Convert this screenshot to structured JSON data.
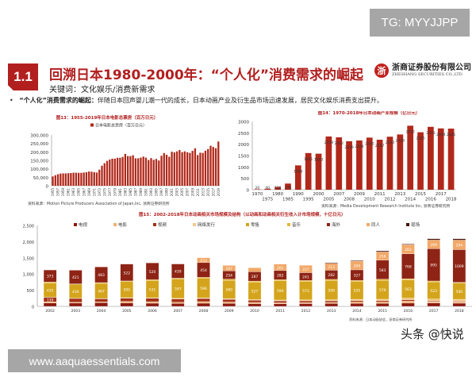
{
  "watermarks": {
    "top_right": "TG: MYYJJPP",
    "bottom_left": "www.aaquaessentials.com",
    "platform": "头条 @快说"
  },
  "header": {
    "section_number": "1.1",
    "title": "回溯日本1980-2000年：“个人化”消费需求的崛起",
    "keywords": "关键词：文化娱乐/消费新需求",
    "logo_cn": "浙商证券股份有限公司",
    "logo_en": "ZHESHANG SECURITIES CO.,LTD"
  },
  "bullet": {
    "lead": "“个人化”消费需求的崛起：",
    "text": "伴随日本回声婴儿潮一代的成长，日本动画产业及衍生品市场迅速发展，居民文化娱乐消费支出提升。"
  },
  "colors": {
    "brand": "#b21f1f",
    "bar": "#b0281a"
  },
  "chart_data": [
    {
      "type": "bar",
      "title": "图13：1955-2019年日本电影总票房（百万日元）",
      "legend": [
        "日本电影总票房（百万日元）"
      ],
      "legend_position": "top",
      "source": "资料来源：Motion Picture Producers Association of Japan,Inc, 浙商证券研究所",
      "ylim": [
        0,
        300000
      ],
      "yticks": [
        "0",
        "50,000",
        "100,000",
        "150,000",
        "200,000",
        "250,000",
        "300,000"
      ],
      "x": [
        1955,
        1956,
        1957,
        1958,
        1959,
        1960,
        1961,
        1962,
        1963,
        1964,
        1965,
        1966,
        1967,
        1968,
        1969,
        1970,
        1971,
        1972,
        1973,
        1974,
        1975,
        1976,
        1977,
        1978,
        1979,
        1980,
        1981,
        1982,
        1983,
        1984,
        1985,
        1986,
        1987,
        1988,
        1989,
        1990,
        1991,
        1992,
        1993,
        1994,
        1995,
        1996,
        1997,
        1998,
        1999,
        2000,
        2001,
        2002,
        2003,
        2004,
        2005,
        2006,
        2007,
        2008,
        2009,
        2010,
        2011,
        2012,
        2013,
        2014,
        2015,
        2016,
        2017,
        2018,
        2019
      ],
      "values": [
        55000,
        62000,
        68000,
        72000,
        73000,
        73000,
        74000,
        75000,
        77000,
        77000,
        76000,
        76000,
        78000,
        80000,
        84000,
        83000,
        80000,
        78000,
        95000,
        118000,
        133000,
        147000,
        155000,
        160000,
        160000,
        165000,
        165000,
        170000,
        188000,
        175000,
        175000,
        180000,
        162000,
        162000,
        166000,
        172000,
        166000,
        152000,
        163000,
        153000,
        158000,
        149000,
        177000,
        193000,
        183000,
        171000,
        201000,
        197000,
        203000,
        211000,
        198000,
        203000,
        198000,
        194000,
        206000,
        221000,
        181000,
        195000,
        194000,
        207000,
        217000,
        236000,
        229000,
        222000,
        261000
      ]
    },
    {
      "type": "bar",
      "title": "图14：1970-2018年日本动画产业规模（亿日元）",
      "source": "资料来源：Media Development Research Institute Inc, 浙商证券研究所",
      "ylim": [
        0,
        3000
      ],
      "yticks": [
        "0",
        "500",
        "1000",
        "1500",
        "2000",
        "2500",
        "3000"
      ],
      "categories": [
        "1970",
        "1975",
        "1980",
        "1985",
        "1990",
        "1995",
        "2000",
        "2005",
        "2007",
        "2008",
        "2009",
        "2010",
        "2011",
        "2012",
        "2013",
        "2014",
        "2015",
        "2016",
        "2017",
        "2018"
      ],
      "values": [
        20,
        40,
        120,
        270,
        1069,
        1611,
        1583,
        2339,
        2302,
        2129,
        2164,
        2290,
        2197,
        2330,
        2428,
        2812,
        2525,
        2763,
        2694,
        2685
      ]
    },
    {
      "type": "bar",
      "stacked": true,
      "title": "图15：2002-2018年日本动画相关市场规模及结构（以动画和动画相关衍生收入计市场规模，十亿日元）",
      "source": "资料来源：日本动画协会，浙商证券研究所",
      "ylim": [
        0,
        2500
      ],
      "yticks": [
        "0",
        "500",
        "1,000",
        "1,500",
        "2,000",
        "2,500"
      ],
      "legend_position": "top",
      "categories": [
        "2002",
        "2003",
        "2004",
        "2005",
        "2006",
        "2007",
        "2008",
        "2009",
        "2010",
        "2011",
        "2012",
        "2013",
        "2014",
        "2015",
        "2016",
        "2017",
        "2018"
      ],
      "series": [
        {
          "name": "电视",
          "color": "#8b1a10",
          "values": [
            102,
            101,
            116,
            107,
            98,
            90,
            98,
            93,
            84,
            80,
            86,
            89,
            90,
            93,
            101,
            105,
            98
          ]
        },
        {
          "name": "电影",
          "color": "#f0b070",
          "values": [
            40,
            26,
            26,
            49,
            47,
            38,
            50,
            43,
            40,
            31,
            33,
            35,
            48,
            46,
            66,
            41,
            43
          ]
        },
        {
          "name": "视频",
          "color": "#a53018",
          "values": [
            139,
            118,
            92,
            99,
            106,
            102,
            96,
            82,
            64,
            59,
            51,
            48,
            40,
            38,
            40,
            24,
            19
          ]
        },
        {
          "name": "网络发行",
          "color": "#f5c88a",
          "values": [
            2,
            8,
            10,
            14,
            16,
            18,
            22,
            24,
            26,
            27,
            30,
            34,
            41,
            44,
            48,
            58,
            58
          ]
        },
        {
          "name": "零售",
          "color": "#d4a51c",
          "values": [
            435,
            434,
            467,
            505,
            531,
            597,
            596,
            560,
            527,
            594,
            573,
            599,
            555,
            579,
            563,
            523,
            500
          ]
        },
        {
          "name": "音乐",
          "color": "#e8b83a",
          "values": [
            34,
            9,
            24,
            12,
            26,
            26,
            35,
            41,
            41,
            33,
            28,
            30,
            28,
            42,
            37,
            34,
            26
          ]
        },
        {
          "name": "海外",
          "color": "#8e2415",
          "values": [
            373,
            421,
            483,
            522,
            520,
            439,
            454,
            254,
            287,
            282,
            241,
            282,
            327,
            583,
            768,
            995,
            1009
          ]
        },
        {
          "name": "同人",
          "color": "#f2a868",
          "values": [
            0,
            0,
            0,
            0,
            0,
            0,
            153,
            167,
            122,
            201,
            227,
            213,
            269,
            256,
            283,
            269,
            294
          ]
        },
        {
          "name": "现场",
          "color": "#4a150c",
          "values": [
            0,
            0,
            0,
            0,
            0,
            0,
            0,
            0,
            0,
            0,
            0,
            20,
            22,
            34,
            20,
            40,
            40
          ]
        }
      ]
    }
  ]
}
